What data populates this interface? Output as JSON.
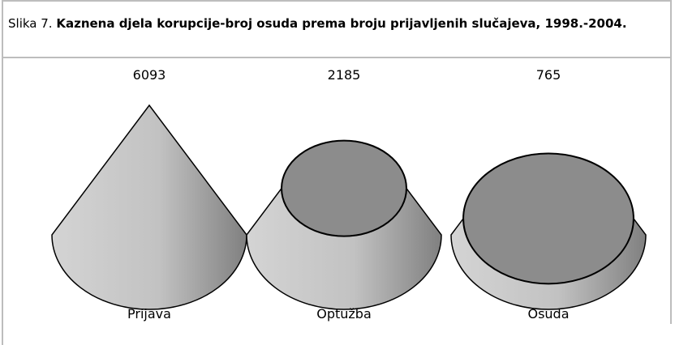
{
  "chart_data": {
    "type": "cone",
    "title_prefix": "Slika 7.",
    "title": "Kaznena djela korupcije-broj osuda prema broju prijavljenih slučajeva, 1998.-2004.",
    "categories": [
      "Prijava",
      "Optužba",
      "Osuda"
    ],
    "values": [
      6093,
      2185,
      765
    ],
    "color": "#b8b8b8",
    "top_color": "#8c8c8c"
  }
}
